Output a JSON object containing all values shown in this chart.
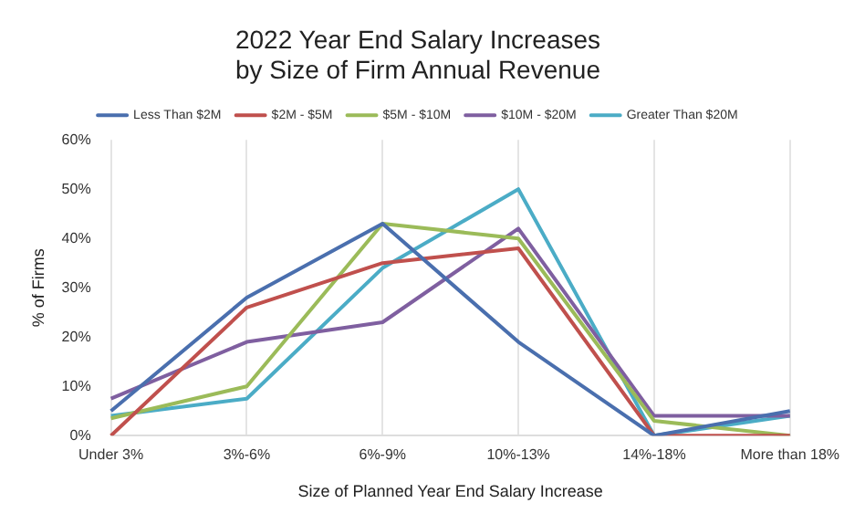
{
  "chart_data": {
    "type": "line",
    "title": [
      "2022 Year End Salary Increases",
      "by Size of Firm Annual Revenue"
    ],
    "xlabel": "Size of Planned Year End Salary Increase",
    "ylabel": "% of Firms",
    "categories": [
      "Under 3%",
      "3%-6%",
      "6%-9%",
      "10%-13%",
      "14%-18%",
      "More than 18%"
    ],
    "series": [
      {
        "name": "Less Than $2M",
        "color": "#4a6fae",
        "values": [
          5,
          28,
          43,
          19,
          0,
          5
        ]
      },
      {
        "name": "$2M - $5M",
        "color": "#c0504d",
        "values": [
          0,
          26,
          35,
          38,
          0,
          0
        ]
      },
      {
        "name": "$5M - $10M",
        "color": "#9bbb59",
        "values": [
          3.5,
          10,
          43,
          40,
          3,
          0
        ]
      },
      {
        "name": "$10M - $20M",
        "color": "#7f5fa0",
        "values": [
          7.5,
          19,
          23,
          42,
          4,
          4
        ]
      },
      {
        "name": "Greater Than $20M",
        "color": "#4bacc6",
        "values": [
          4,
          7.5,
          34,
          50,
          0,
          4
        ]
      }
    ],
    "ylim": [
      0,
      60
    ],
    "yticks": [
      {
        "value": 0,
        "label": "0%"
      },
      {
        "value": 10,
        "label": "10%"
      },
      {
        "value": 20,
        "label": "20%"
      },
      {
        "value": 30,
        "label": "30%"
      },
      {
        "value": 40,
        "label": "40%"
      },
      {
        "value": 50,
        "label": "50%"
      },
      {
        "value": 60,
        "label": "60%"
      }
    ],
    "grid": "x",
    "legend": "top",
    "marker": "none",
    "line_style": "solid"
  }
}
